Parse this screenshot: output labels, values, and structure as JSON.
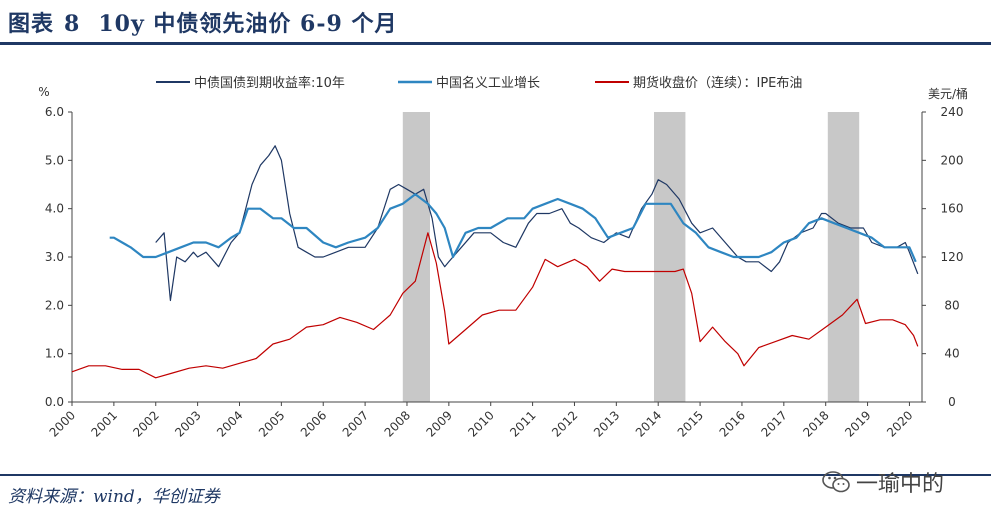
{
  "figure": {
    "label": "图表",
    "number": "8",
    "title": "10y 中债领先油价 6-9 个月"
  },
  "source": "资料来源：wind，华创证券",
  "watermark": "一瑜中的",
  "colors": {
    "title": "#1f3864",
    "bond": "#1f3864",
    "ip": "#2e86c1",
    "oil": "#c00000",
    "shade": "#c8c8c8"
  },
  "chart_data": {
    "type": "line",
    "left_axis": {
      "unit": "%",
      "ylim": [
        0,
        6
      ],
      "ticks": [
        "0.0",
        "1.0",
        "2.0",
        "3.0",
        "4.0",
        "5.0",
        "6.0"
      ]
    },
    "right_axis": {
      "unit": "美元/桶",
      "ylim": [
        0,
        240
      ],
      "ticks": [
        "0",
        "40",
        "80",
        "120",
        "160",
        "200",
        "240"
      ]
    },
    "x_ticks": [
      "2000",
      "2001",
      "2002",
      "2003",
      "2004",
      "2005",
      "2006",
      "2007",
      "2008",
      "2009",
      "2010",
      "2011",
      "2012",
      "2013",
      "2014",
      "2015",
      "2016",
      "2017",
      "2018",
      "2019",
      "2020"
    ],
    "xlim": [
      2000,
      2020.3
    ],
    "shaded_periods": [
      [
        2007.9,
        2008.55
      ],
      [
        2013.9,
        2014.65
      ],
      [
        2018.05,
        2018.8
      ]
    ],
    "series": [
      {
        "name": "中债国债到期收益率:10年",
        "axis": "left",
        "x": [
          2002.0,
          2002.2,
          2002.35,
          2002.5,
          2002.7,
          2002.9,
          2003.0,
          2003.2,
          2003.5,
          2003.8,
          2004.0,
          2004.3,
          2004.5,
          2004.7,
          2004.85,
          2005.0,
          2005.2,
          2005.4,
          2005.6,
          2005.8,
          2006.0,
          2006.3,
          2006.6,
          2007.0,
          2007.3,
          2007.6,
          2007.8,
          2008.0,
          2008.2,
          2008.4,
          2008.6,
          2008.75,
          2008.9,
          2009.0,
          2009.3,
          2009.6,
          2010.0,
          2010.3,
          2010.6,
          2010.9,
          2011.1,
          2011.4,
          2011.7,
          2011.9,
          2012.1,
          2012.4,
          2012.7,
          2013.0,
          2013.3,
          2013.6,
          2013.85,
          2014.0,
          2014.2,
          2014.5,
          2014.8,
          2015.0,
          2015.3,
          2015.6,
          2015.9,
          2016.1,
          2016.4,
          2016.7,
          2016.9,
          2017.1,
          2017.4,
          2017.7,
          2017.9,
          2018.0,
          2018.3,
          2018.6,
          2018.9,
          2019.1,
          2019.4,
          2019.7,
          2019.9,
          2020.0,
          2020.2
        ],
        "values": [
          3.3,
          3.5,
          2.1,
          3.0,
          2.9,
          3.1,
          3.0,
          3.1,
          2.8,
          3.3,
          3.5,
          4.5,
          4.9,
          5.1,
          5.3,
          5.0,
          3.9,
          3.2,
          3.1,
          3.0,
          3.0,
          3.1,
          3.2,
          3.2,
          3.6,
          4.4,
          4.5,
          4.4,
          4.3,
          4.4,
          3.8,
          3.0,
          2.8,
          2.9,
          3.2,
          3.5,
          3.5,
          3.3,
          3.2,
          3.7,
          3.9,
          3.9,
          4.0,
          3.7,
          3.6,
          3.4,
          3.3,
          3.5,
          3.4,
          4.0,
          4.3,
          4.6,
          4.5,
          4.2,
          3.7,
          3.5,
          3.6,
          3.3,
          3.0,
          2.9,
          2.9,
          2.7,
          2.9,
          3.3,
          3.5,
          3.6,
          3.9,
          3.9,
          3.7,
          3.6,
          3.6,
          3.3,
          3.2,
          3.2,
          3.3,
          3.1,
          2.65
        ]
      },
      {
        "name": "中国名义工业增长",
        "axis": "left",
        "x": [
          2000.9,
          2001.0,
          2001.2,
          2001.4,
          2001.7,
          2002.0,
          2002.3,
          2002.6,
          2002.9,
          2003.2,
          2003.5,
          2003.8,
          2004.0,
          2004.2,
          2004.5,
          2004.8,
          2005.0,
          2005.3,
          2005.6,
          2006.0,
          2006.3,
          2006.6,
          2007.0,
          2007.3,
          2007.6,
          2007.9,
          2008.2,
          2008.5,
          2008.7,
          2008.9,
          2009.1,
          2009.4,
          2009.7,
          2010.0,
          2010.4,
          2010.8,
          2011.0,
          2011.3,
          2011.6,
          2011.9,
          2012.2,
          2012.5,
          2012.8,
          2013.1,
          2013.4,
          2013.7,
          2014.0,
          2014.3,
          2014.6,
          2014.9,
          2015.2,
          2015.5,
          2015.8,
          2016.1,
          2016.4,
          2016.7,
          2017.0,
          2017.3,
          2017.6,
          2017.9,
          2018.2,
          2018.5,
          2018.8,
          2019.1,
          2019.4,
          2019.7,
          2020.0,
          2020.15
        ],
        "values": [
          3.4,
          3.4,
          3.3,
          3.2,
          3.0,
          3.0,
          3.1,
          3.2,
          3.3,
          3.3,
          3.2,
          3.4,
          3.5,
          4.0,
          4.0,
          3.8,
          3.8,
          3.6,
          3.6,
          3.3,
          3.2,
          3.3,
          3.4,
          3.6,
          4.0,
          4.1,
          4.3,
          4.1,
          3.9,
          3.6,
          3.0,
          3.5,
          3.6,
          3.6,
          3.8,
          3.8,
          4.0,
          4.1,
          4.2,
          4.1,
          4.0,
          3.8,
          3.4,
          3.5,
          3.6,
          4.1,
          4.1,
          4.1,
          3.7,
          3.5,
          3.2,
          3.1,
          3.0,
          3.0,
          3.0,
          3.1,
          3.3,
          3.4,
          3.7,
          3.8,
          3.7,
          3.6,
          3.5,
          3.4,
          3.2,
          3.2,
          3.2,
          2.9
        ]
      },
      {
        "name": "期货收盘价（连续）：IPE布油",
        "axis": "right",
        "x": [
          2000.0,
          2000.4,
          2000.8,
          2001.2,
          2001.6,
          2002.0,
          2002.4,
          2002.8,
          2003.2,
          2003.6,
          2004.0,
          2004.4,
          2004.8,
          2005.2,
          2005.6,
          2006.0,
          2006.4,
          2006.8,
          2007.2,
          2007.6,
          2007.9,
          2008.2,
          2008.5,
          2008.7,
          2008.9,
          2009.0,
          2009.4,
          2009.8,
          2010.2,
          2010.6,
          2011.0,
          2011.3,
          2011.6,
          2012.0,
          2012.3,
          2012.6,
          2012.9,
          2013.2,
          2013.6,
          2014.0,
          2014.4,
          2014.6,
          2014.8,
          2015.0,
          2015.3,
          2015.6,
          2015.9,
          2016.05,
          2016.4,
          2016.8,
          2017.2,
          2017.6,
          2018.0,
          2018.4,
          2018.75,
          2018.95,
          2019.3,
          2019.6,
          2019.9,
          2020.1,
          2020.2
        ],
        "values": [
          25,
          30,
          30,
          27,
          27,
          20,
          24,
          28,
          30,
          28,
          32,
          36,
          48,
          52,
          62,
          64,
          70,
          66,
          60,
          72,
          90,
          100,
          140,
          115,
          75,
          48,
          60,
          72,
          76,
          76,
          95,
          118,
          112,
          118,
          112,
          100,
          110,
          108,
          108,
          108,
          108,
          110,
          90,
          50,
          62,
          50,
          40,
          30,
          45,
          50,
          55,
          52,
          62,
          72,
          85,
          65,
          68,
          68,
          64,
          55,
          46
        ]
      }
    ]
  }
}
